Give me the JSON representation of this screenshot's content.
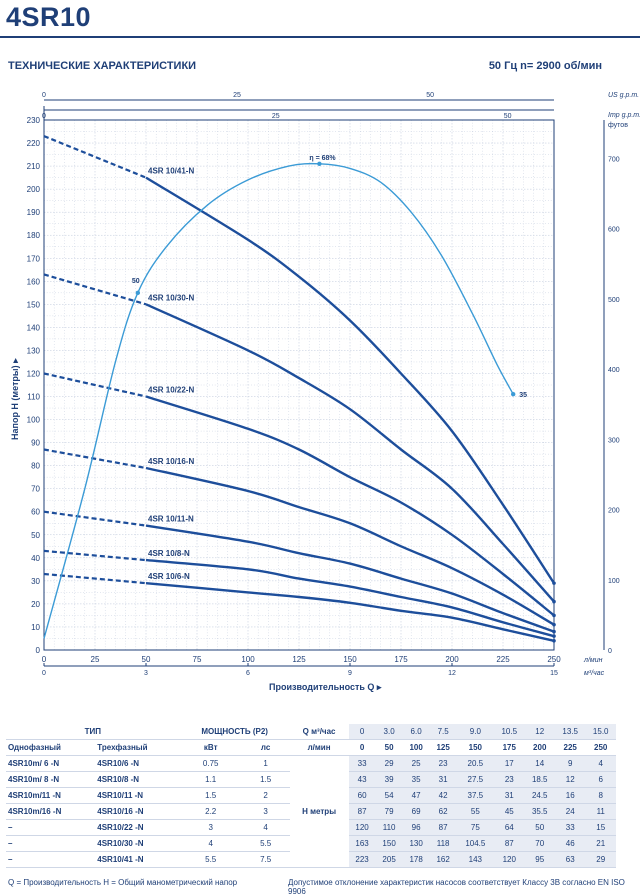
{
  "header": {
    "title": "4SR10",
    "subtitle": "ТЕХНИЧЕСКИЕ ХАРАКТЕРИСТИКИ",
    "speed": "50 Гц    n= 2900 об/мин"
  },
  "chart_data": {
    "type": "line",
    "title": "4SR10",
    "xlabel": "Производительность  Q",
    "ylabel": "Напор  Н (метры)",
    "x_unit_bottom": "л/мин",
    "x_unit_m3": "м³/час",
    "x_unit_us": "US g.p.m.",
    "x_unit_imp": "Imp g.p.m.",
    "y_unit_right": "футов",
    "xlim": [
      0,
      250
    ],
    "ylim": [
      0,
      230
    ],
    "x_ticks": [
      "0",
      "25",
      "50",
      "75",
      "100",
      "125",
      "150",
      "175",
      "200",
      "225",
      "250"
    ],
    "y_ticks": [
      "0",
      "10",
      "20",
      "30",
      "40",
      "50",
      "60",
      "70",
      "80",
      "90",
      "100",
      "110",
      "120",
      "130",
      "140",
      "150",
      "160",
      "170",
      "180",
      "190",
      "200",
      "210",
      "220",
      "230"
    ],
    "m3_ticks": [
      {
        "q": 0,
        "label": "0"
      },
      {
        "q": 50,
        "label": "3"
      },
      {
        "q": 100,
        "label": "6"
      },
      {
        "q": 150,
        "label": "9"
      },
      {
        "q": 200,
        "label": "12"
      },
      {
        "q": 250,
        "label": "15"
      }
    ],
    "us_ticks": [
      {
        "q": 0,
        "label": "0"
      },
      {
        "q": 94.6,
        "label": "25"
      },
      {
        "q": 189.3,
        "label": "50"
      }
    ],
    "imp_ticks": [
      {
        "q": 0,
        "label": "0"
      },
      {
        "q": 113.6,
        "label": "25"
      },
      {
        "q": 227.3,
        "label": "50"
      }
    ],
    "ft_ticks": [
      {
        "h": 0,
        "label": "0"
      },
      {
        "h": 30.48,
        "label": "100"
      },
      {
        "h": 60.96,
        "label": "200"
      },
      {
        "h": 91.44,
        "label": "300"
      },
      {
        "h": 121.92,
        "label": "400"
      },
      {
        "h": 152.4,
        "label": "500"
      },
      {
        "h": 182.88,
        "label": "600"
      },
      {
        "h": 213.36,
        "label": "700"
      }
    ],
    "q_points": [
      0,
      50,
      100,
      125,
      150,
      175,
      200,
      225,
      250
    ],
    "dashed_until": 50,
    "series": [
      {
        "name": "4SR 10/41-N",
        "values": [
          223,
          205,
          178,
          162,
          143,
          120,
          95,
          63,
          29
        ]
      },
      {
        "name": "4SR 10/30-N",
        "values": [
          163,
          150,
          130,
          118,
          104.5,
          87,
          70,
          46,
          21
        ]
      },
      {
        "name": "4SR 10/22-N",
        "values": [
          120,
          110,
          96,
          87,
          75,
          64,
          50,
          33,
          15
        ]
      },
      {
        "name": "4SR 10/16-N",
        "values": [
          87,
          79,
          69,
          62,
          55,
          45,
          35.5,
          24,
          11
        ]
      },
      {
        "name": "4SR 10/11-N",
        "values": [
          60,
          54,
          47,
          42,
          37.5,
          31,
          24.5,
          16,
          8
        ]
      },
      {
        "name": "4SR 10/8-N",
        "values": [
          43,
          39,
          35,
          31,
          27.5,
          23,
          18.5,
          12,
          6
        ]
      },
      {
        "name": "4SR 10/6-N",
        "values": [
          33,
          29,
          25,
          23,
          20.5,
          17,
          14,
          9,
          4
        ]
      }
    ],
    "efficiency": {
      "label_max": "η = 68%",
      "label_start": "50",
      "label_end": "35",
      "points": [
        [
          0,
          5
        ],
        [
          20,
          70
        ],
        [
          35,
          125
        ],
        [
          46,
          155
        ],
        [
          60,
          175
        ],
        [
          80,
          193
        ],
        [
          100,
          204
        ],
        [
          120,
          210
        ],
        [
          135,
          211
        ],
        [
          150,
          209
        ],
        [
          165,
          203
        ],
        [
          180,
          190
        ],
        [
          195,
          171
        ],
        [
          210,
          146
        ],
        [
          222,
          124
        ],
        [
          230,
          111
        ]
      ]
    }
  },
  "table": {
    "head": {
      "type": "ТИП",
      "power": "МОЩНОСТЬ (P2)",
      "q": "Q",
      "unit_m3": "м³/час",
      "unit_lmin": "л/мин",
      "single": "Однофазный",
      "three": "Трехфазный",
      "kw": "кВт",
      "hp": "лс",
      "h": "H",
      "meters": "метры",
      "m3_values": [
        "0",
        "3.0",
        "6.0",
        "7.5",
        "9.0",
        "10.5",
        "12",
        "13.5",
        "15.0"
      ],
      "l_values": [
        "0",
        "50",
        "100",
        "125",
        "150",
        "175",
        "200",
        "225",
        "250"
      ]
    },
    "rows": [
      {
        "single": "4SR10m/ 6  -N",
        "three": "4SR10/6  -N",
        "kw": "0.75",
        "hp": "1",
        "h": [
          "33",
          "29",
          "25",
          "23",
          "20.5",
          "17",
          "14",
          "9",
          "4"
        ]
      },
      {
        "single": "4SR10m/ 8  -N",
        "three": "4SR10/8  -N",
        "kw": "1.1",
        "hp": "1.5",
        "h": [
          "43",
          "39",
          "35",
          "31",
          "27.5",
          "23",
          "18.5",
          "12",
          "6"
        ]
      },
      {
        "single": "4SR10m/11 -N",
        "three": "4SR10/11 -N",
        "kw": "1.5",
        "hp": "2",
        "h": [
          "60",
          "54",
          "47",
          "42",
          "37.5",
          "31",
          "24.5",
          "16",
          "8"
        ]
      },
      {
        "single": "4SR10m/16 -N",
        "three": "4SR10/16 -N",
        "kw": "2.2",
        "hp": "3",
        "h": [
          "87",
          "79",
          "69",
          "62",
          "55",
          "45",
          "35.5",
          "24",
          "11"
        ]
      },
      {
        "single": "–",
        "three": "4SR10/22 -N",
        "kw": "3",
        "hp": "4",
        "h": [
          "120",
          "110",
          "96",
          "87",
          "75",
          "64",
          "50",
          "33",
          "15"
        ]
      },
      {
        "single": "–",
        "three": "4SR10/30 -N",
        "kw": "4",
        "hp": "5.5",
        "h": [
          "163",
          "150",
          "130",
          "118",
          "104.5",
          "87",
          "70",
          "46",
          "21"
        ]
      },
      {
        "single": "–",
        "three": "4SR10/41 -N",
        "kw": "5.5",
        "hp": "7.5",
        "h": [
          "223",
          "205",
          "178",
          "162",
          "143",
          "120",
          "95",
          "63",
          "29"
        ]
      }
    ]
  },
  "footer": {
    "legend": "Q = Производительность  H = Общий манометрический напор",
    "tolerance": "Допустимое отклонение характеристик насосов соответствует Классу 3B согласно EN ISO 9906"
  }
}
